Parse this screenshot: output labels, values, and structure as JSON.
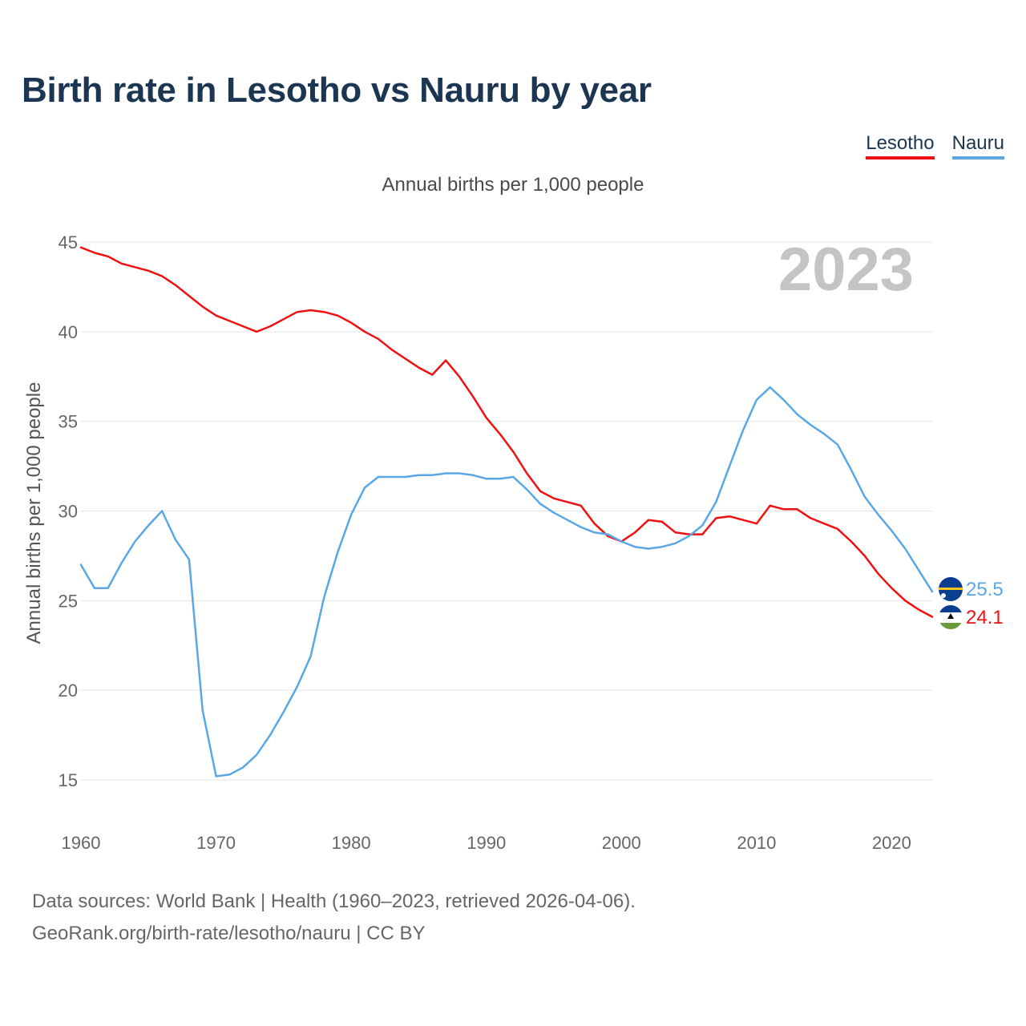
{
  "title": "Birth rate in Lesotho vs Nauru by year",
  "legend": {
    "lesotho": "Lesotho",
    "nauru": "Nauru"
  },
  "subtitle": "Annual births per 1,000 people",
  "source": {
    "line1": "Data sources: World Bank | Health (1960–2023, retrieved 2026-04-06).",
    "line2": "GeoRank.org/birth-rate/lesotho/nauru | CC BY"
  },
  "colors": {
    "lesotho": "#ef1111",
    "nauru": "#5aa7e6",
    "grid": "#e4e4e4"
  },
  "chart_data": {
    "type": "line",
    "title": "Birth rate in Lesotho vs Nauru by year",
    "ylabel": "Annual births per 1,000 people",
    "xlabel": "",
    "year_label": "2023",
    "xlim": [
      1960,
      2023
    ],
    "ylim": [
      13,
      46
    ],
    "yticks": [
      15,
      20,
      25,
      30,
      35,
      40,
      45
    ],
    "xticks": [
      1960,
      1970,
      1980,
      1990,
      2000,
      2010,
      2020
    ],
    "x": [
      1960,
      1961,
      1962,
      1963,
      1964,
      1965,
      1966,
      1967,
      1968,
      1969,
      1970,
      1971,
      1972,
      1973,
      1974,
      1975,
      1976,
      1977,
      1978,
      1979,
      1980,
      1981,
      1982,
      1983,
      1984,
      1985,
      1986,
      1987,
      1988,
      1989,
      1990,
      1991,
      1992,
      1993,
      1994,
      1995,
      1996,
      1997,
      1998,
      1999,
      2000,
      2001,
      2002,
      2003,
      2004,
      2005,
      2006,
      2007,
      2008,
      2009,
      2010,
      2011,
      2012,
      2013,
      2014,
      2015,
      2016,
      2017,
      2018,
      2019,
      2020,
      2021,
      2022,
      2023
    ],
    "series": [
      {
        "name": "Lesotho",
        "end_label": "24.1",
        "values": [
          44.7,
          44.4,
          44.2,
          43.8,
          43.6,
          43.4,
          43.1,
          42.6,
          42.0,
          41.4,
          40.9,
          40.6,
          40.3,
          40.0,
          40.3,
          40.7,
          41.1,
          41.2,
          41.1,
          40.9,
          40.5,
          40.0,
          39.6,
          39.0,
          38.5,
          38.0,
          37.6,
          38.4,
          37.5,
          36.4,
          35.2,
          34.3,
          33.3,
          32.1,
          31.1,
          30.7,
          30.5,
          30.3,
          29.3,
          28.6,
          28.3,
          28.8,
          29.5,
          29.4,
          28.8,
          28.7,
          28.7,
          29.6,
          29.7,
          29.5,
          29.3,
          30.3,
          30.1,
          30.1,
          29.6,
          29.3,
          29.0,
          28.3,
          27.5,
          26.5,
          25.7,
          25.0,
          24.5,
          24.1
        ]
      },
      {
        "name": "Nauru",
        "end_label": "25.5",
        "values": [
          27.0,
          25.7,
          25.7,
          27.1,
          28.3,
          29.2,
          30.0,
          28.4,
          27.3,
          18.9,
          15.2,
          15.3,
          15.7,
          16.4,
          17.5,
          18.8,
          20.2,
          21.9,
          25.2,
          27.7,
          29.8,
          31.3,
          31.9,
          31.9,
          31.9,
          32.0,
          32.0,
          32.1,
          32.1,
          32.0,
          31.8,
          31.8,
          31.9,
          31.2,
          30.4,
          29.9,
          29.5,
          29.1,
          28.8,
          28.7,
          28.3,
          28.0,
          27.9,
          28.0,
          28.2,
          28.6,
          29.2,
          30.5,
          32.5,
          34.5,
          36.2,
          36.9,
          36.2,
          35.4,
          34.8,
          34.3,
          33.7,
          32.3,
          30.8,
          29.8,
          28.9,
          27.9,
          26.7,
          25.5
        ]
      }
    ]
  }
}
